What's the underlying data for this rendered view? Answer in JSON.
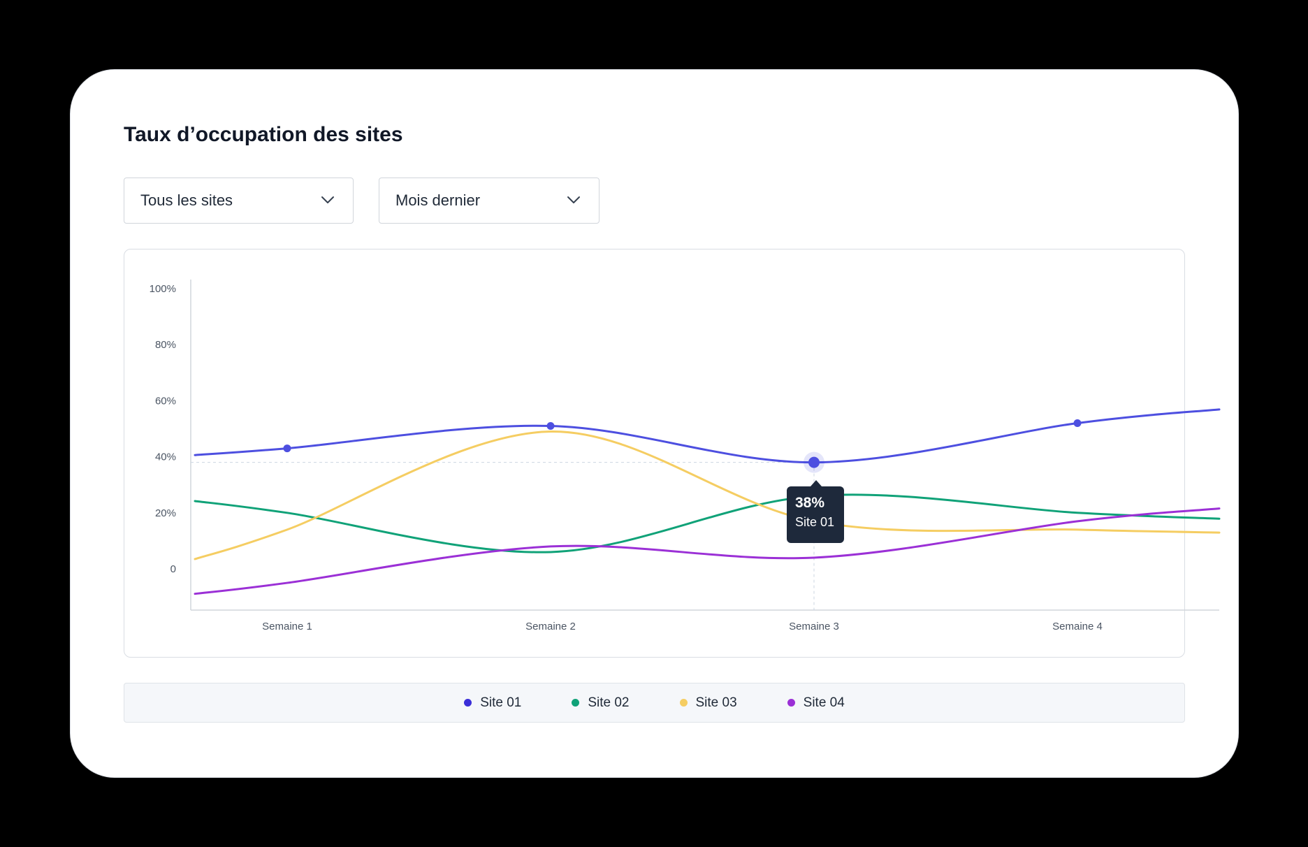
{
  "title": "Taux d’occupation des sites",
  "filters": {
    "site_select": "Tous les sites",
    "period_select": "Mois dernier"
  },
  "tooltip": {
    "value": "38%",
    "series": "Site 01"
  },
  "colors": {
    "site01": "#4d4fe0",
    "site02": "#10a278",
    "site03": "#f5cd62",
    "site04": "#9b30d6"
  },
  "chart_data": {
    "type": "line",
    "categories": [
      "Semaine 1",
      "Semaine 2",
      "Semaine 3",
      "Semaine 4"
    ],
    "yticks": [
      "100%",
      "80%",
      "60%",
      "40%",
      "20%",
      "0"
    ],
    "ylim": [
      0,
      100
    ],
    "series": [
      {
        "name": "Site 01",
        "values": [
          43,
          51,
          38,
          52
        ]
      },
      {
        "name": "Site 02",
        "values": [
          20,
          6,
          26,
          20
        ]
      },
      {
        "name": "Site 03",
        "values": [
          14,
          49,
          17,
          14
        ]
      },
      {
        "name": "Site 04",
        "values": [
          -5,
          8,
          4,
          17
        ]
      }
    ],
    "highlight": {
      "series": "Site 01",
      "category": "Semaine 3",
      "value": 38
    }
  }
}
